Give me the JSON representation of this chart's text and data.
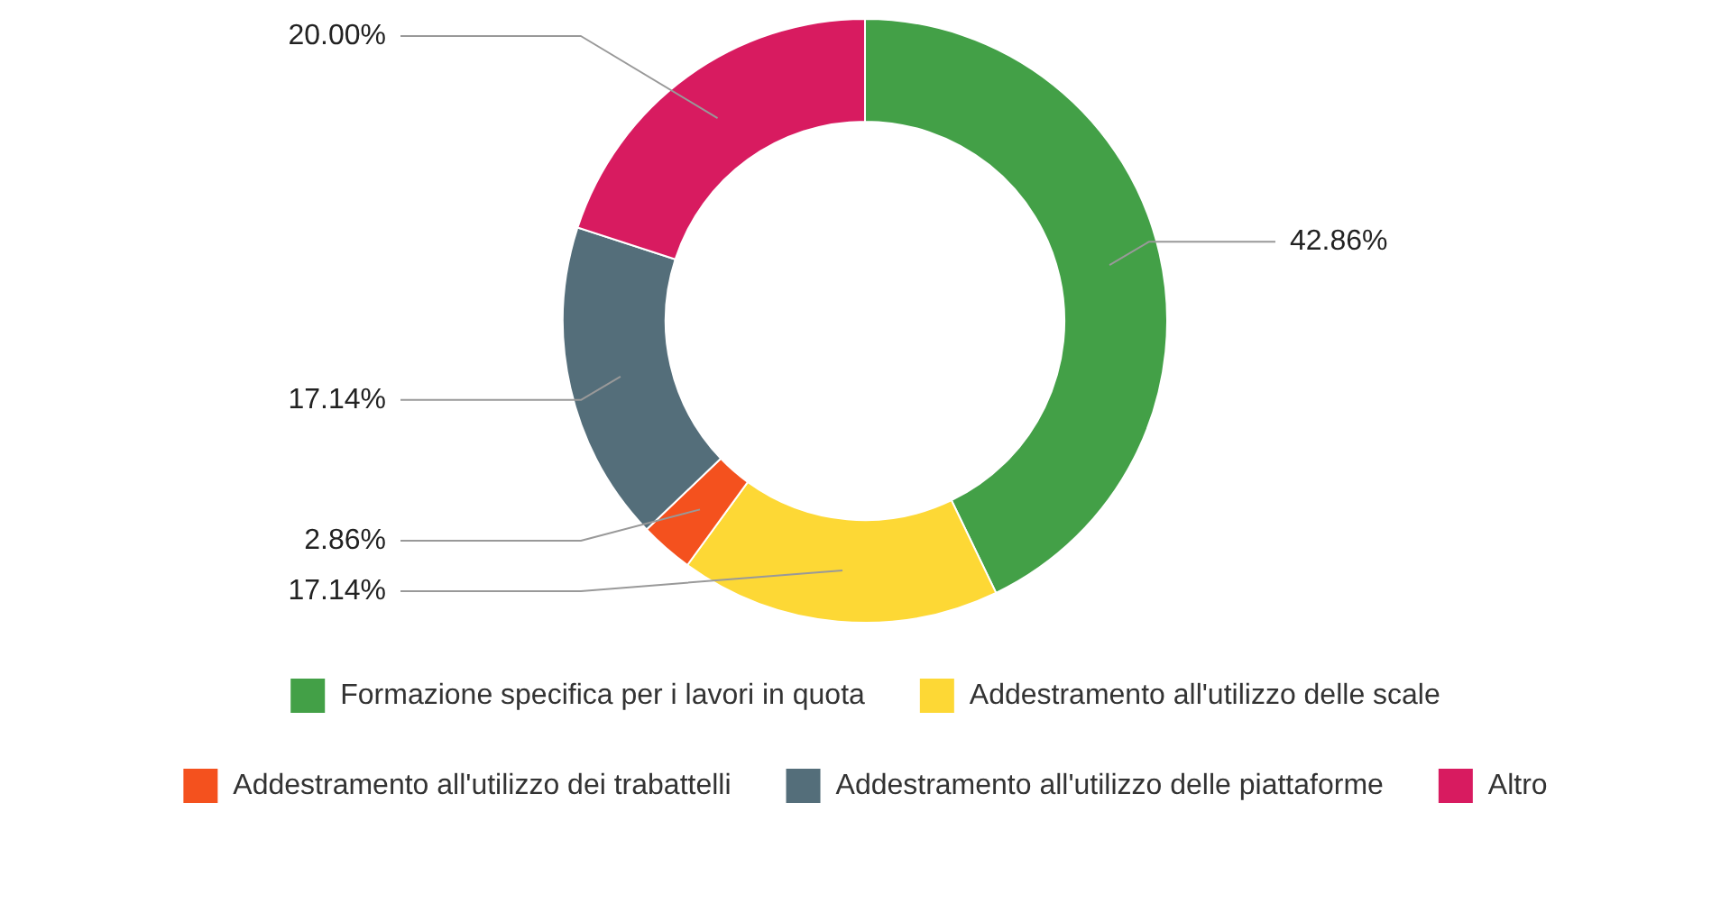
{
  "chart_data": {
    "type": "donut",
    "categories": [
      "Formazione specifica per i lavori in quota",
      "Addestramento all'utilizzo delle scale",
      "Addestramento all'utilizzo dei trabattelli",
      "Addestramento all'utilizzo delle piattaforme",
      "Altro"
    ],
    "values": [
      42.86,
      17.14,
      2.86,
      17.14,
      20.0
    ],
    "value_labels": [
      "42.86%",
      "17.14%",
      "2.86%",
      "17.14%",
      "20.00%"
    ],
    "colors": [
      "#43a047",
      "#fdd835",
      "#f4511e",
      "#546e7a",
      "#d81b60"
    ],
    "legend": "bottom"
  }
}
